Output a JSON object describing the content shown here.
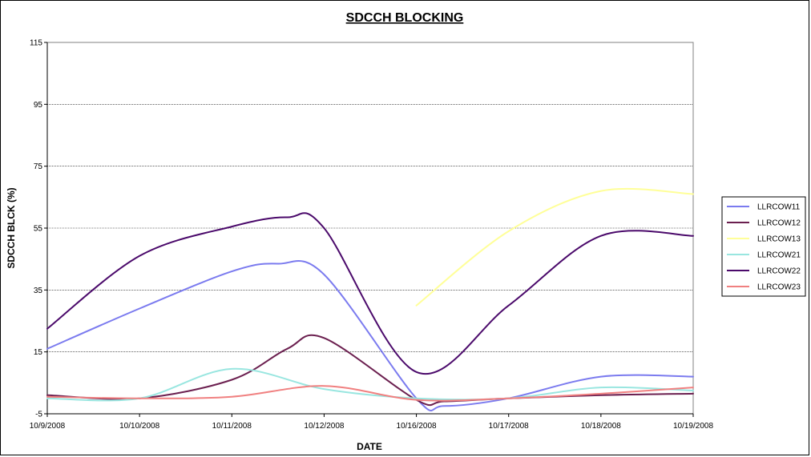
{
  "chart_data": {
    "type": "line",
    "title": "SDCCH BLOCKING",
    "xlabel": "DATE",
    "ylabel": "SDCCH BLCK (%)",
    "categories": [
      "10/9/2008",
      "10/10/2008",
      "10/11/2008",
      "10/12/2008",
      "10/16/2008",
      "10/17/2008",
      "10/18/2008",
      "10/19/2008"
    ],
    "ylim": [
      -5,
      115
    ],
    "yticks": [
      -5,
      15,
      35,
      55,
      75,
      95,
      115
    ],
    "grid": true,
    "legend": "right",
    "series": [
      {
        "name": "LLRCOW11",
        "color": "#7b7bef",
        "points": [
          [
            0,
            16
          ],
          [
            1,
            29
          ],
          [
            2,
            41
          ],
          [
            2.5,
            43.5
          ],
          [
            3,
            40
          ],
          [
            4,
            0
          ],
          [
            4.3,
            -2.5
          ],
          [
            5,
            0
          ],
          [
            6,
            7
          ],
          [
            7,
            7
          ]
        ]
      },
      {
        "name": "LLRCOW12",
        "color": "#6b1f4f",
        "points": [
          [
            0,
            1
          ],
          [
            1,
            0
          ],
          [
            2,
            6
          ],
          [
            2.6,
            16
          ],
          [
            3,
            19.5
          ],
          [
            4,
            -0.5
          ],
          [
            4.3,
            -1
          ],
          [
            5,
            0
          ],
          [
            6,
            1
          ],
          [
            7,
            1.5
          ]
        ]
      },
      {
        "name": "LLRCOW13",
        "color": "#ffff99",
        "points": [
          [
            4,
            30
          ],
          [
            5,
            54
          ],
          [
            6,
            67
          ],
          [
            7,
            66
          ]
        ]
      },
      {
        "name": "LLRCOW21",
        "color": "#99e6e0",
        "points": [
          [
            0,
            0
          ],
          [
            1,
            0
          ],
          [
            2,
            9.5
          ],
          [
            3,
            3
          ],
          [
            4,
            0
          ],
          [
            5,
            0
          ],
          [
            6,
            3.5
          ],
          [
            7,
            2.5
          ]
        ]
      },
      {
        "name": "LLRCOW22",
        "color": "#4b0a6b",
        "points": [
          [
            0,
            22.5
          ],
          [
            1,
            46
          ],
          [
            2,
            55.5
          ],
          [
            2.6,
            58.5
          ],
          [
            3,
            55
          ],
          [
            4,
            8.5
          ],
          [
            5,
            30
          ],
          [
            6,
            52.5
          ],
          [
            7,
            52.5
          ]
        ]
      },
      {
        "name": "LLRCOW23",
        "color": "#f08080",
        "points": [
          [
            0,
            0.5
          ],
          [
            1,
            0
          ],
          [
            2,
            0.5
          ],
          [
            3,
            4
          ],
          [
            4,
            -0.5
          ],
          [
            5,
            0
          ],
          [
            6,
            1.5
          ],
          [
            7,
            3.5
          ]
        ]
      }
    ]
  }
}
